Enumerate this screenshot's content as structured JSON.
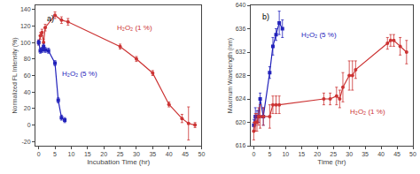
{
  "chart_data": [
    {
      "type": "line",
      "xlabel": "Incubation Time (hr)",
      "ylabel": "Normalized FL Intensity (%)",
      "annotations": [
        "a)"
      ],
      "xlim": [
        -1,
        50
      ],
      "ylim": [
        -25,
        145
      ],
      "xticks": [
        0,
        5,
        10,
        15,
        20,
        25,
        30,
        35,
        40,
        45,
        50
      ],
      "yticks": [
        -20,
        0,
        20,
        40,
        60,
        80,
        100,
        120,
        140
      ],
      "grid": false,
      "series": [
        {
          "name": "H₂O₂ (1 %)",
          "color": "#cc3333",
          "marker": "circle",
          "x": [
            0,
            0.5,
            1,
            1.5,
            2,
            5,
            7,
            9,
            25,
            30,
            35,
            40,
            44,
            46,
            48
          ],
          "values": [
            100,
            108,
            112,
            100,
            118,
            133,
            127,
            125,
            95,
            80,
            63,
            25,
            8,
            2,
            0
          ],
          "yerr": [
            3,
            4,
            4,
            4,
            4,
            4,
            4,
            4,
            3,
            3,
            3,
            3,
            5,
            20,
            3
          ]
        },
        {
          "name": "H₂O₂ (5 %)",
          "color": "#2222bb",
          "marker": "square",
          "x": [
            0,
            0.5,
            1,
            1.5,
            2,
            3,
            5,
            6,
            7,
            8
          ],
          "values": [
            100,
            90,
            91,
            95,
            91,
            90,
            75,
            30,
            9,
            6
          ],
          "yerr": [
            3,
            3,
            3,
            3,
            3,
            3,
            3,
            3,
            3,
            3
          ]
        }
      ]
    },
    {
      "type": "line",
      "xlabel": "Time (hr)",
      "ylabel": "Maximum Wavelength (nm)",
      "annotations": [
        "b)"
      ],
      "xlim": [
        -1,
        50
      ],
      "ylim": [
        616,
        640
      ],
      "xticks": [
        0,
        5,
        10,
        15,
        20,
        25,
        30,
        35,
        40,
        45,
        50
      ],
      "yticks": [
        616,
        620,
        624,
        628,
        632,
        636,
        640
      ],
      "grid": false,
      "series": [
        {
          "name": "H₂O₂ (5 %)",
          "color": "#2222bb",
          "marker": "square",
          "x": [
            0,
            0.5,
            1,
            1.5,
            2,
            3,
            5,
            6,
            7,
            8,
            9
          ],
          "values": [
            619.5,
            621,
            621,
            621,
            624,
            621,
            628.5,
            633,
            635,
            637,
            636
          ],
          "yerr": [
            1,
            1.5,
            1,
            1,
            1,
            1.5,
            1,
            1.5,
            1,
            2,
            1.5
          ]
        },
        {
          "name": "H₂O₂ (1 %)",
          "color": "#cc3333",
          "marker": "circle",
          "x": [
            0,
            0.5,
            1,
            1.5,
            2,
            3,
            5,
            6,
            7,
            8,
            22,
            24,
            26,
            27,
            28,
            30,
            31,
            32,
            42,
            43,
            44,
            46,
            48
          ],
          "values": [
            618.5,
            620,
            620,
            621,
            621,
            621,
            621,
            623,
            623,
            623,
            624,
            624,
            624.5,
            624,
            626,
            628,
            628,
            629,
            633.5,
            634,
            634,
            633,
            632
          ],
          "yerr": [
            1.5,
            1.5,
            1.5,
            1.5,
            2,
            1.5,
            2,
            1.5,
            1.5,
            1.5,
            1,
            1,
            1.5,
            1.5,
            2.5,
            2.5,
            2.5,
            1.5,
            1,
            1,
            1,
            1.5,
            2
          ]
        }
      ]
    }
  ]
}
